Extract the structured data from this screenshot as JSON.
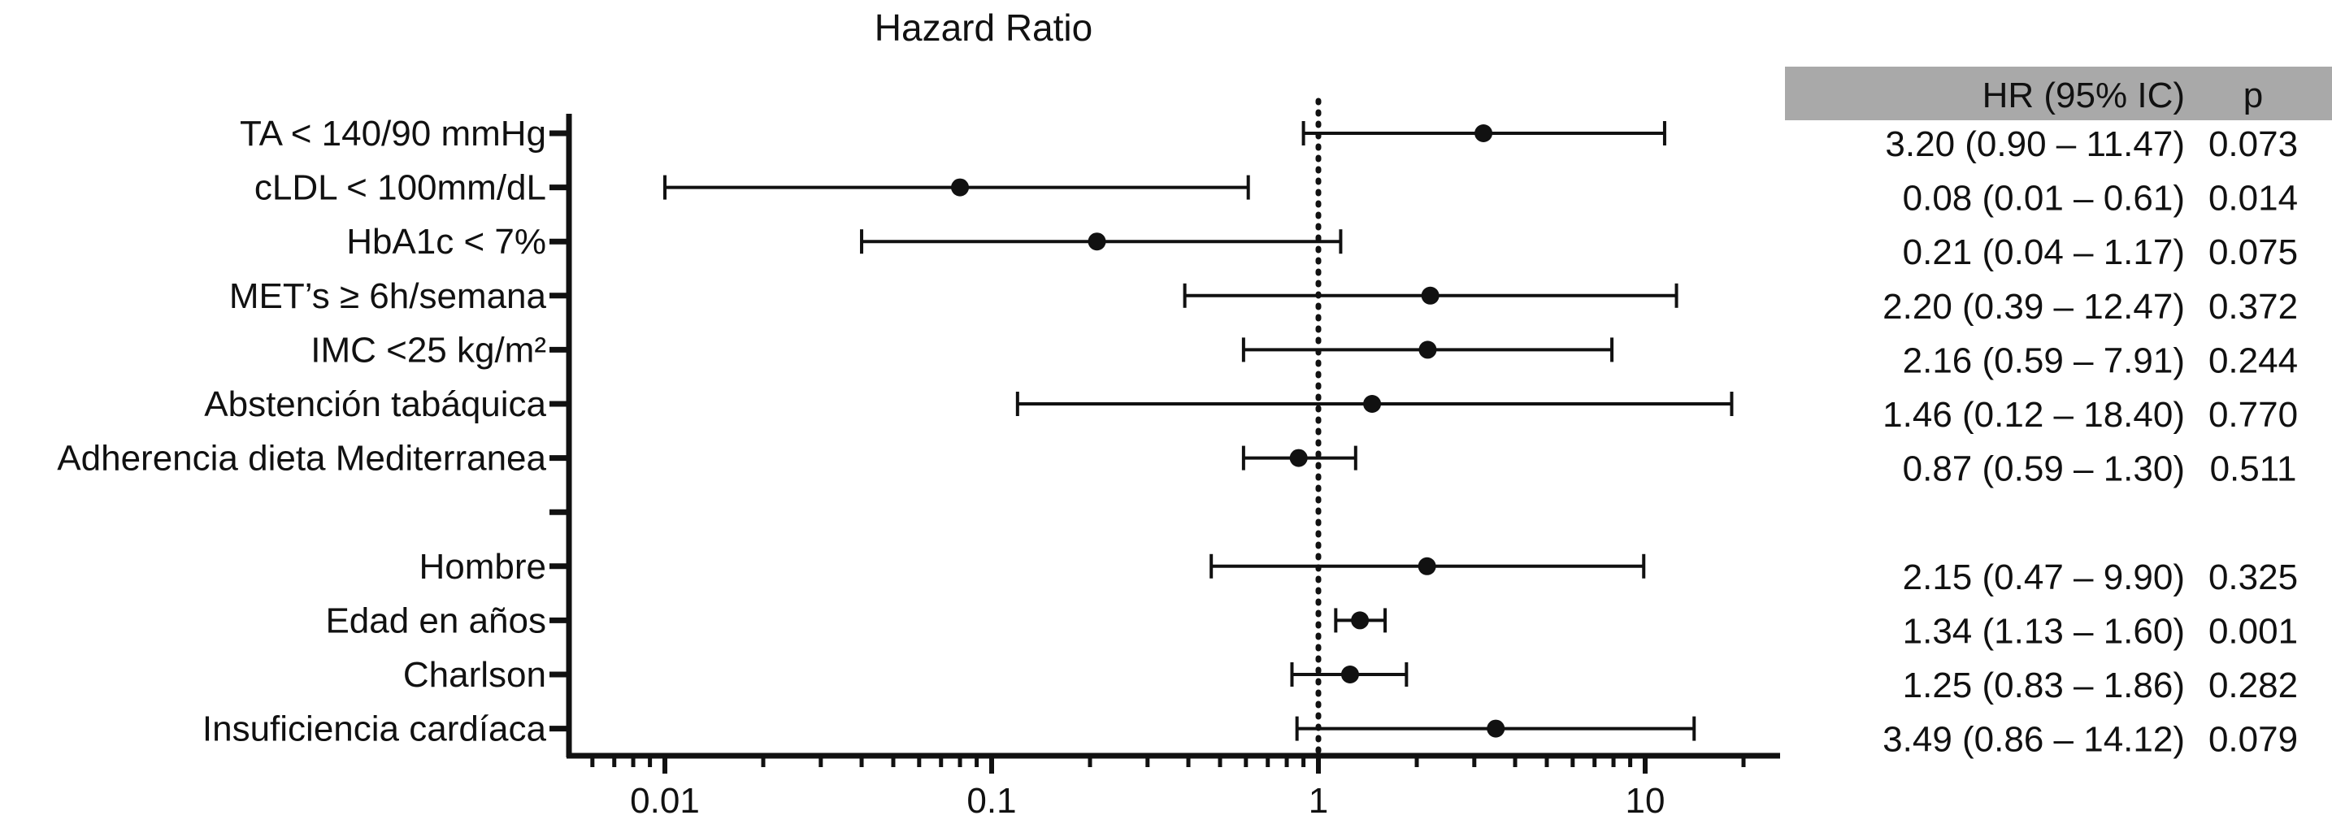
{
  "chart_data": {
    "type": "forest",
    "title": "Hazard Ratio",
    "x_scale": "log",
    "xlim": [
      0.005,
      20
    ],
    "xticks": [
      0.01,
      0.1,
      1,
      10
    ],
    "xtick_labels": [
      "0.01",
      "0.1",
      "1",
      "10"
    ],
    "reference_line": 1,
    "table_headers": {
      "hr": "HR (95% IC)",
      "p": "p"
    },
    "rows": [
      {
        "label": "TA < 140/90 mmHg",
        "hr": 3.2,
        "lo": 0.9,
        "hi": 11.47,
        "ci_text": "3.20 (0.90 – 11.47)",
        "p": "0.073"
      },
      {
        "label": "cLDL < 100mm/dL",
        "hr": 0.08,
        "lo": 0.01,
        "hi": 0.61,
        "ci_text": "0.08 (0.01 – 0.61)",
        "p": "0.014"
      },
      {
        "label": "HbA1c < 7%",
        "hr": 0.21,
        "lo": 0.04,
        "hi": 1.17,
        "ci_text": "0.21 (0.04 – 1.17)",
        "p": "0.075"
      },
      {
        "label": "MET’s ≥ 6h/semana",
        "hr": 2.2,
        "lo": 0.39,
        "hi": 12.47,
        "ci_text": "2.20 (0.39 – 12.47)",
        "p": "0.372"
      },
      {
        "label": "IMC <25 kg/m²",
        "hr": 2.16,
        "lo": 0.59,
        "hi": 7.91,
        "ci_text": "2.16 (0.59 – 7.91)",
        "p": "0.244"
      },
      {
        "label": "Abstención tabáquica",
        "hr": 1.46,
        "lo": 0.12,
        "hi": 18.4,
        "ci_text": "1.46 (0.12 – 18.40)",
        "p": "0.770"
      },
      {
        "label": "Adherencia dieta Mediterranea",
        "hr": 0.87,
        "lo": 0.59,
        "hi": 1.3,
        "ci_text": "0.87 (0.59 – 1.30)",
        "p": "0.511"
      },
      {
        "label": "",
        "hr": null,
        "lo": null,
        "hi": null,
        "ci_text": "",
        "p": ""
      },
      {
        "label": "Hombre",
        "hr": 2.15,
        "lo": 0.47,
        "hi": 9.9,
        "ci_text": "2.15 (0.47 – 9.90)",
        "p": "0.325"
      },
      {
        "label": "Edad en años",
        "hr": 1.34,
        "lo": 1.13,
        "hi": 1.6,
        "ci_text": "1.34 (1.13 – 1.60)",
        "p": "0.001"
      },
      {
        "label": "Charlson",
        "hr": 1.25,
        "lo": 0.83,
        "hi": 1.86,
        "ci_text": "1.25 (0.83 – 1.86)",
        "p": "0.282"
      },
      {
        "label": "Insuficiencia cardíaca",
        "hr": 3.49,
        "lo": 0.86,
        "hi": 14.12,
        "ci_text": "3.49 (0.86 – 14.12)",
        "p": "0.079"
      }
    ],
    "colors": {
      "marks": "#111111",
      "header_bg": "#a9a9a9"
    }
  }
}
